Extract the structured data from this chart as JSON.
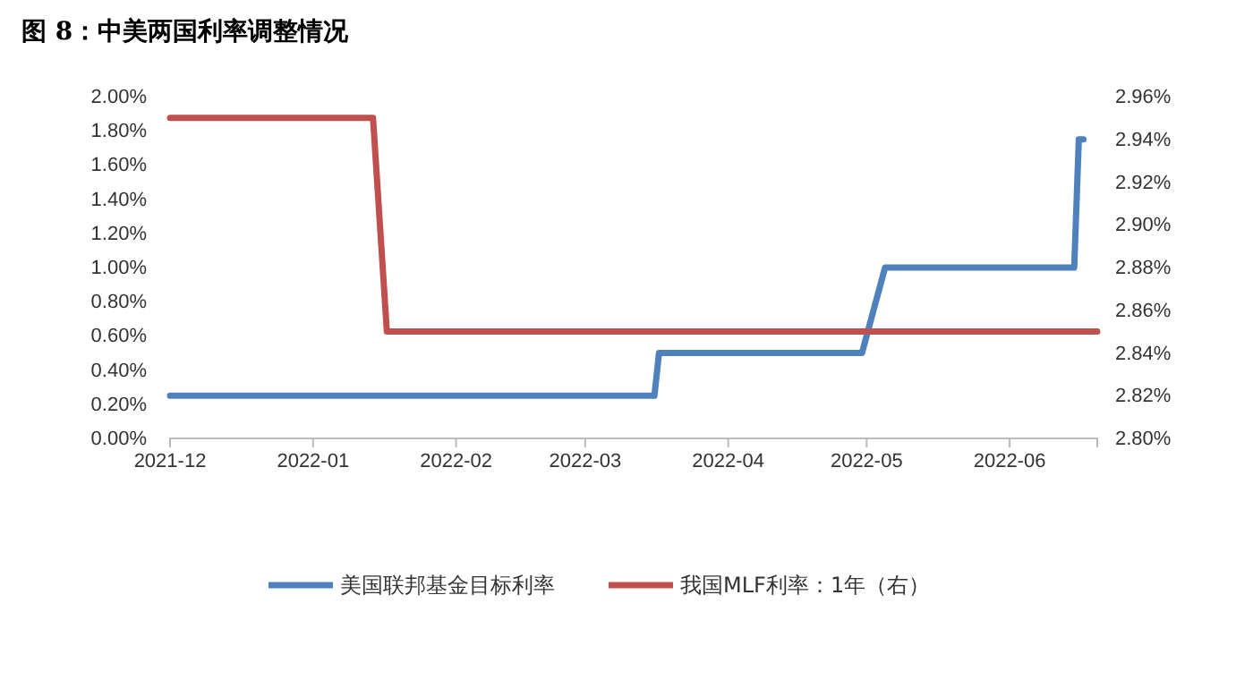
{
  "chart_data": {
    "type": "line",
    "title": "图 8：中美两国利率调整情况",
    "xlim": [
      "2021-12-01",
      "2022-06-20"
    ],
    "xticks": [
      {
        "value": "2021-12-01",
        "label": "2021-12"
      },
      {
        "value": "2022-01-01",
        "label": "2022-01"
      },
      {
        "value": "2022-02-01",
        "label": "2022-02"
      },
      {
        "value": "2022-03-01",
        "label": "2022-03"
      },
      {
        "value": "2022-04-01",
        "label": "2022-04"
      },
      {
        "value": "2022-05-01",
        "label": "2022-05"
      },
      {
        "value": "2022-06-01",
        "label": "2022-06"
      }
    ],
    "ylim": [
      0,
      2
    ],
    "yticks": [
      {
        "value": 0,
        "label": "0.00%"
      },
      {
        "value": 0.2,
        "label": "0.20%"
      },
      {
        "value": 0.4,
        "label": "0.40%"
      },
      {
        "value": 0.6,
        "label": "0.60%"
      },
      {
        "value": 0.8,
        "label": "0.80%"
      },
      {
        "value": 1,
        "label": "1.00%"
      },
      {
        "value": 1.2,
        "label": "1.20%"
      },
      {
        "value": 1.4,
        "label": "1.40%"
      },
      {
        "value": 1.6,
        "label": "1.60%"
      },
      {
        "value": 1.8,
        "label": "1.80%"
      },
      {
        "value": 2,
        "label": "2.00%"
      }
    ],
    "y2lim": [
      2.8,
      2.96
    ],
    "y2ticks": [
      {
        "value": 2.8,
        "label": "2.80%"
      },
      {
        "value": 2.82,
        "label": "2.82%"
      },
      {
        "value": 2.84,
        "label": "2.84%"
      },
      {
        "value": 2.86,
        "label": "2.86%"
      },
      {
        "value": 2.88,
        "label": "2.88%"
      },
      {
        "value": 2.9,
        "label": "2.90%"
      },
      {
        "value": 2.92,
        "label": "2.92%"
      },
      {
        "value": 2.94,
        "label": "2.94%"
      },
      {
        "value": 2.96,
        "label": "2.96%"
      }
    ],
    "legend": "bottom",
    "grid": false,
    "series": [
      {
        "name": "美国联邦基金目标利率",
        "color": "#4f81bd",
        "x": [
          "2021-12-01",
          "2022-03-16",
          "2022-03-17",
          "2022-04-30",
          "2022-05-05",
          "2022-06-15",
          "2022-06-16",
          "2022-06-17"
        ],
        "values": [
          0.25,
          0.25,
          0.5,
          0.5,
          1,
          1,
          1.75,
          1.75
        ]
      },
      {
        "name": "我国MLF利率：1年（右）",
        "color": "#c0504d",
        "axis": "y2",
        "x": [
          "2021-12-01",
          "2022-01-14",
          "2022-01-17",
          "2022-06-20"
        ],
        "values": [
          2.95,
          2.95,
          2.85,
          2.85
        ]
      }
    ]
  }
}
